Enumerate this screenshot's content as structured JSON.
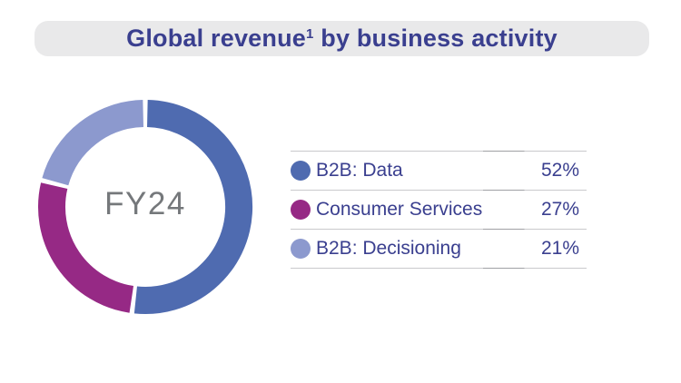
{
  "header": {
    "title_prefix": "Global revenue",
    "title_superscript": "1",
    "title_suffix": " by business activity"
  },
  "chart": {
    "center_label": "FY24"
  },
  "legend": {
    "rows": [
      {
        "label": "B2B: Data",
        "percent": "52%"
      },
      {
        "label": "Consumer Services",
        "percent": "27%"
      },
      {
        "label": "B2B: Decisioning",
        "percent": "21%"
      }
    ]
  },
  "chart_data": {
    "type": "pie",
    "subtype": "donut",
    "title": "Global revenue(1) by business activity",
    "center_label": "FY24",
    "start_angle_deg": 0,
    "direction": "clockwise",
    "legend_position": "right",
    "segments": [
      {
        "label": "B2B: Data",
        "value": 52,
        "color": "#4f6bb0"
      },
      {
        "label": "Consumer Services",
        "value": 27,
        "color": "#962985"
      },
      {
        "label": "B2B: Decisioning",
        "value": 21,
        "color": "#8c99ce"
      }
    ]
  },
  "colors": {
    "title_text": "#3a3f8f",
    "banner_bg": "#e9e9ea",
    "center_label_text": "#75787b",
    "legend_text": "#3a3f8f",
    "divider": "#c9c9cc"
  }
}
